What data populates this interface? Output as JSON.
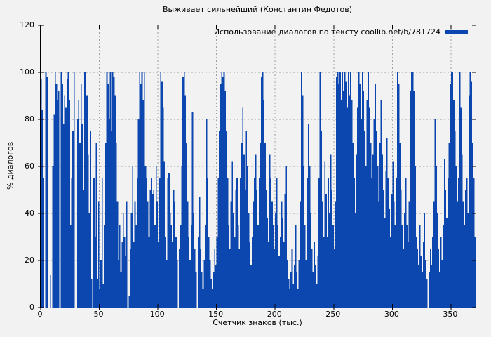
{
  "chart": {
    "title": "Выживает сильнейший (Константин Федотов)",
    "legend_label": "Использование диалогов по тексту coollib.net/b/781724",
    "xlabel": "Счетчик знаков (тыс.)",
    "ylabel": "% диалогов",
    "y_ticks": [
      0,
      20,
      40,
      60,
      80,
      100,
      120
    ],
    "x_ticks": [
      0,
      50,
      100,
      150,
      200,
      250,
      300,
      350
    ],
    "colors": {
      "bar": "#0b47ae",
      "background": "#f2f2f2",
      "grid": "#a0a0a0",
      "axis": "#000000",
      "text": "#000000"
    }
  },
  "chart_data": {
    "type": "bar",
    "title": "Выживает сильнейший (Константин Федотов)",
    "xlabel": "Счетчик знаков (тыс.)",
    "ylabel": "% диалогов",
    "legend": [
      "Использование диалогов по тексту coollib.net/b/781724"
    ],
    "xlim": [
      0,
      371
    ],
    "ylim": [
      0,
      120
    ],
    "x_start": 0,
    "x_step": 1,
    "grid": true,
    "legend_position": "top-right",
    "values": [
      97,
      84,
      55,
      0,
      100,
      98,
      0,
      0,
      14,
      0,
      60,
      82,
      100,
      95,
      88,
      92,
      0,
      100,
      95,
      78,
      90,
      85,
      97,
      100,
      88,
      35,
      55,
      75,
      100,
      0,
      0,
      80,
      88,
      70,
      95,
      78,
      50,
      100,
      100,
      90,
      65,
      40,
      75,
      12,
      0,
      55,
      30,
      70,
      12,
      45,
      8,
      20,
      55,
      10,
      35,
      70,
      100,
      95,
      80,
      100,
      75,
      100,
      98,
      90,
      70,
      45,
      20,
      35,
      15,
      28,
      40,
      30,
      22,
      45,
      0,
      5,
      25,
      40,
      60,
      28,
      45,
      35,
      55,
      80,
      100,
      95,
      100,
      88,
      100,
      60,
      55,
      45,
      30,
      50,
      55,
      48,
      50,
      35,
      60,
      45,
      28,
      55,
      100,
      96,
      85,
      62,
      30,
      20,
      55,
      57,
      40,
      35,
      28,
      50,
      45,
      30,
      20,
      0,
      25,
      35,
      60,
      98,
      100,
      90,
      70,
      45,
      30,
      20,
      35,
      83,
      40,
      25,
      15,
      0,
      30,
      47,
      25,
      15,
      8,
      20,
      35,
      80,
      55,
      30,
      20,
      12,
      8,
      15,
      25,
      18,
      30,
      55,
      75,
      95,
      100,
      98,
      100,
      92,
      75,
      55,
      35,
      25,
      45,
      62,
      40,
      30,
      50,
      55,
      35,
      25,
      55,
      70,
      85,
      65,
      50,
      75,
      60,
      40,
      28,
      18,
      30,
      45,
      55,
      65,
      50,
      35,
      55,
      70,
      98,
      100,
      88,
      70,
      50,
      38,
      28,
      65,
      55,
      45,
      35,
      25,
      40,
      55,
      35,
      22,
      30,
      45,
      38,
      28,
      48,
      60,
      20,
      12,
      8,
      15,
      25,
      10,
      18,
      35,
      15,
      8,
      20,
      45,
      100,
      90,
      60,
      35,
      20,
      55,
      78,
      60,
      40,
      25,
      15,
      28,
      18,
      10,
      22,
      55,
      100,
      75,
      45,
      30,
      62,
      48,
      30,
      55,
      40,
      65,
      50,
      35,
      25,
      45,
      98,
      100,
      95,
      100,
      88,
      100,
      92,
      100,
      96,
      85,
      100,
      90,
      100,
      88,
      70,
      55,
      40,
      65,
      85,
      100,
      95,
      80,
      100,
      92,
      75,
      60,
      88,
      100,
      85,
      70,
      55,
      65,
      80,
      95,
      75,
      60,
      45,
      70,
      88,
      65,
      50,
      38,
      58,
      72,
      55,
      42,
      30,
      48,
      62,
      45,
      35,
      55,
      100,
      95,
      70,
      50,
      35,
      25,
      40,
      55,
      35,
      28,
      45,
      92,
      100,
      100,
      92,
      60,
      30,
      25,
      18,
      35,
      22,
      15,
      28,
      40,
      20,
      12,
      0,
      15,
      25,
      18,
      30,
      45,
      80,
      60,
      40,
      25,
      15,
      30,
      20,
      35,
      63,
      50,
      38,
      55,
      70,
      95,
      100,
      100,
      88,
      75,
      60,
      45,
      55,
      100,
      85,
      65,
      45,
      35,
      50,
      55,
      40,
      90,
      100,
      96,
      70,
      55,
      30
    ]
  }
}
